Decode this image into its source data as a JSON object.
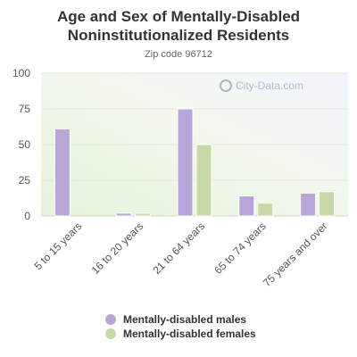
{
  "chart_data": {
    "type": "bar",
    "title_line1": "Age and Sex of Mentally-Disabled",
    "title_line2": "Noninstitutionalized Residents",
    "subtitle": "Zip code 96712",
    "watermark": "City-Data.com",
    "categories": [
      "5 to 15 years",
      "16 to 20 years",
      "21 to 64 years",
      "65 to 74 years",
      "75 years and over"
    ],
    "series": [
      {
        "name": "Mentally-disabled males",
        "color": "#b9a6d9",
        "values": [
          61,
          2,
          75,
          14,
          16
        ]
      },
      {
        "name": "Mentally-disabled females",
        "color": "#c6d9a6",
        "values": [
          0,
          2,
          50,
          9,
          17
        ]
      }
    ],
    "yticks": [
      "0",
      "25",
      "50",
      "75",
      "100"
    ],
    "ylim": [
      0,
      100
    ],
    "grid": true,
    "legend_position": "bottom"
  }
}
